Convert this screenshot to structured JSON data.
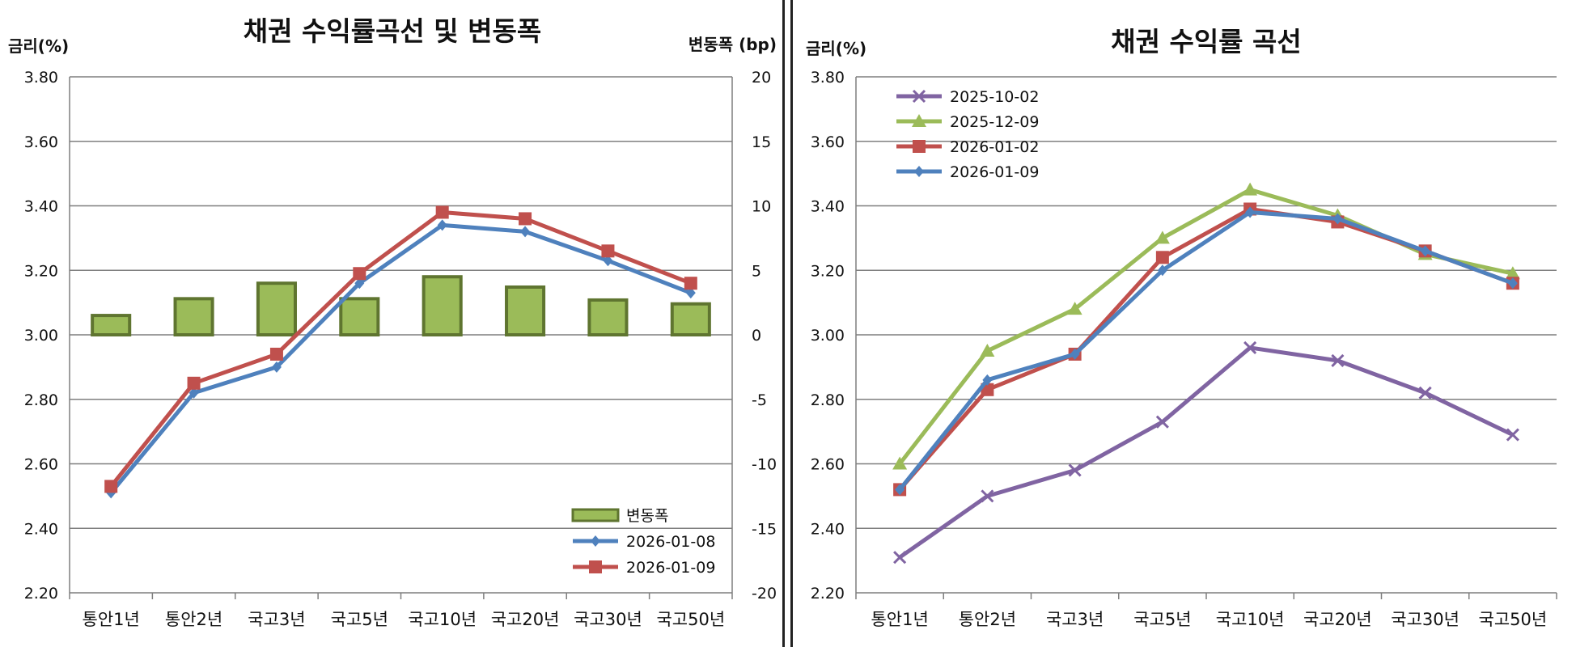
{
  "chart_data": [
    {
      "type": "bar+line",
      "title": "채권 수익률곡선 및 변동폭",
      "ylabel": "금리(%)",
      "y2label": "변동폭 (bp)",
      "categories": [
        "통안1년",
        "통안2년",
        "국고3년",
        "국고5년",
        "국고10년",
        "국고20년",
        "국고30년",
        "국고50년"
      ],
      "ylim": [
        2.2,
        3.8
      ],
      "yticks": [
        "3.80",
        "3.60",
        "3.40",
        "3.20",
        "3.00",
        "2.80",
        "2.60",
        "2.40",
        "2.20"
      ],
      "y2lim": [
        -20,
        20
      ],
      "y2ticks": [
        "20",
        "15",
        "10",
        "5",
        "0",
        "-5",
        "-10",
        "-15",
        "-20"
      ],
      "bar_series": {
        "name": "변동폭",
        "axis": "right",
        "values": [
          1.5,
          2.8,
          4.0,
          2.8,
          4.5,
          3.7,
          2.7,
          2.4
        ],
        "color": "#9bbb59",
        "edge": "#5f7530"
      },
      "series": [
        {
          "name": "2026-01-08",
          "values": [
            2.51,
            2.82,
            2.9,
            3.16,
            3.34,
            3.32,
            3.23,
            3.13
          ],
          "color": "#4f81bd",
          "marker": "diamond"
        },
        {
          "name": "2026-01-09",
          "values": [
            2.53,
            2.85,
            2.94,
            3.19,
            3.38,
            3.36,
            3.26,
            3.16
          ],
          "color": "#c0504d",
          "marker": "square"
        }
      ],
      "legend_position": "bottom-right",
      "grid": true
    },
    {
      "type": "line",
      "title": "채권 수익률 곡선",
      "ylabel": "금리(%)",
      "categories": [
        "통안1년",
        "통안2년",
        "국고3년",
        "국고5년",
        "국고10년",
        "국고20년",
        "국고30년",
        "국고50년"
      ],
      "ylim": [
        2.2,
        3.8
      ],
      "yticks": [
        "3.80",
        "3.60",
        "3.40",
        "3.20",
        "3.00",
        "2.80",
        "2.60",
        "2.40",
        "2.20"
      ],
      "series": [
        {
          "name": "2025-10-02",
          "values": [
            2.31,
            2.5,
            2.58,
            2.73,
            2.96,
            2.92,
            2.82,
            2.69
          ],
          "color": "#8064a2",
          "marker": "x"
        },
        {
          "name": "2025-12-09",
          "values": [
            2.6,
            2.95,
            3.08,
            3.3,
            3.45,
            3.37,
            3.25,
            3.19
          ],
          "color": "#9bbb59",
          "marker": "triangle"
        },
        {
          "name": "2026-01-02",
          "values": [
            2.52,
            2.83,
            2.94,
            3.24,
            3.39,
            3.35,
            3.26,
            3.16
          ],
          "color": "#c0504d",
          "marker": "square"
        },
        {
          "name": "2026-01-09",
          "values": [
            2.52,
            2.86,
            2.94,
            3.2,
            3.38,
            3.36,
            3.26,
            3.16
          ],
          "color": "#4f81bd",
          "marker": "diamond"
        }
      ],
      "legend_position": "top-left",
      "grid": true
    }
  ]
}
